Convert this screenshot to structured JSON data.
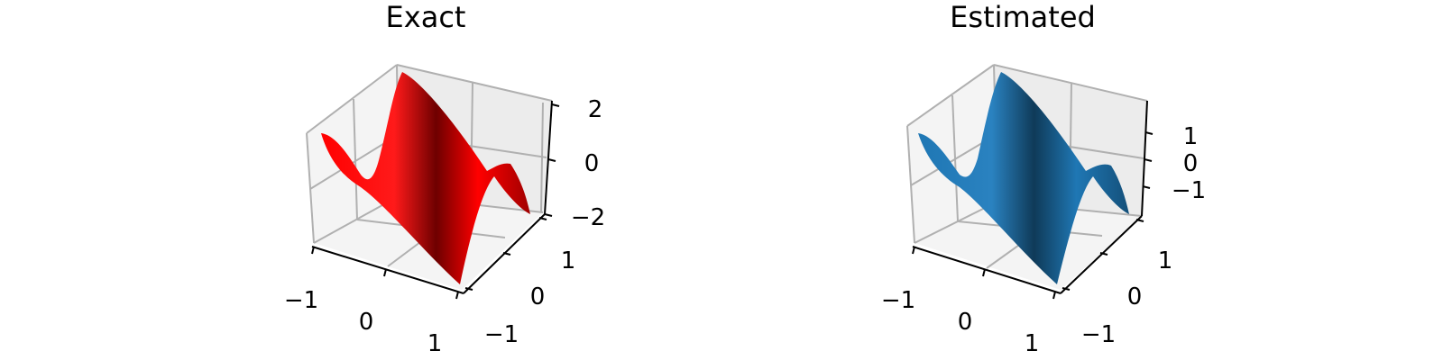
{
  "chart_data": [
    {
      "type": "surface",
      "title": "Exact",
      "x_ticks": [
        "−1",
        "0",
        "1"
      ],
      "y_ticks": [
        "−1",
        "0",
        "1"
      ],
      "z_ticks": [
        "−2",
        "0",
        "2"
      ],
      "xlim": [
        -1.2,
        1.2
      ],
      "ylim": [
        -1.2,
        1.2
      ],
      "zlim": [
        -2.6,
        2.6
      ],
      "z_max": 2.4,
      "z_min": -2.4,
      "color": "#ff0000",
      "grid": true
    },
    {
      "type": "surface",
      "title": "Estimated",
      "x_ticks": [
        "−1",
        "0",
        "1"
      ],
      "y_ticks": [
        "−1",
        "0",
        "1"
      ],
      "z_ticks": [
        "−1",
        "0",
        "1"
      ],
      "xlim": [
        -1.2,
        1.2
      ],
      "ylim": [
        -1.2,
        1.2
      ],
      "zlim": [
        -1.9,
        1.9
      ],
      "z_max": 1.75,
      "z_min": -1.75,
      "color": "#1f77b4",
      "grid": true
    }
  ]
}
